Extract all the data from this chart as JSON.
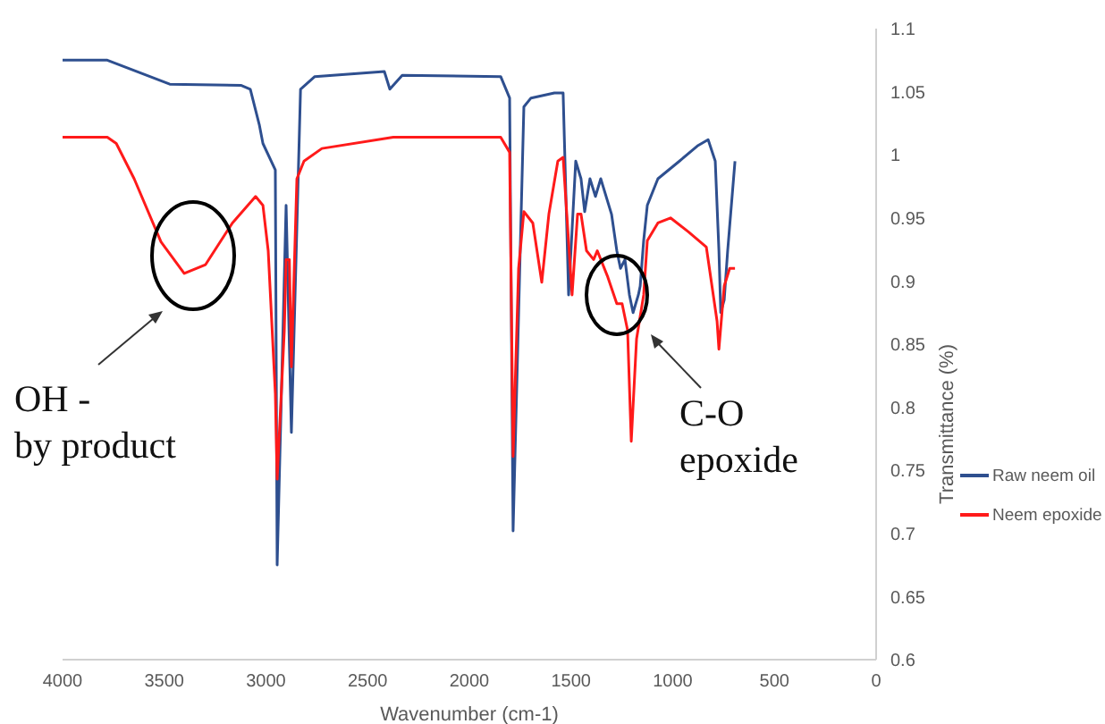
{
  "chart_data": {
    "type": "line",
    "xlabel": "Wavenumber (cm-1)",
    "ylabel": "Transmittance (%)",
    "xlim": [
      4000,
      0
    ],
    "xticks": [
      4000,
      3500,
      3000,
      2500,
      2000,
      1500,
      1000,
      500,
      0
    ],
    "ylim": [
      0.6,
      1.1
    ],
    "yticks": [
      0.6,
      0.65,
      0.7,
      0.75,
      0.8,
      0.85,
      0.9,
      0.95,
      1,
      1.05,
      1.1
    ],
    "grid": false,
    "legend": "right",
    "marker": "none",
    "line_style": "solid",
    "annotations": [
      "OH -\nby product",
      "C-O\nepoxide"
    ],
    "series": [
      {
        "name": "Raw neem oil",
        "color": "#2e4f8f",
        "x": [
          4000,
          3780,
          3473,
          3121,
          3077,
          3033,
          3015,
          2954,
          2945,
          2901,
          2875,
          2830,
          2760,
          2418,
          2391,
          2330,
          1846,
          1802,
          1785,
          1732,
          1697,
          1582,
          1539,
          1512,
          1477,
          1451,
          1433,
          1407,
          1380,
          1354,
          1301,
          1275,
          1257,
          1235,
          1213,
          1195,
          1169,
          1160,
          1143,
          1125,
          1073,
          967,
          879,
          826,
          791,
          773,
          764,
          747,
          730,
          694
        ],
        "values": [
          1.075,
          1.075,
          1.056,
          1.055,
          1.052,
          1.024,
          1.009,
          0.988,
          0.675,
          0.96,
          0.78,
          1.052,
          1.062,
          1.066,
          1.052,
          1.063,
          1.062,
          1.045,
          0.702,
          1.038,
          1.045,
          1.049,
          1.049,
          0.889,
          0.995,
          0.981,
          0.955,
          0.981,
          0.967,
          0.981,
          0.953,
          0.924,
          0.91,
          0.917,
          0.889,
          0.875,
          0.889,
          0.896,
          0.932,
          0.96,
          0.981,
          0.995,
          1.007,
          1.012,
          0.995,
          0.924,
          0.875,
          0.885,
          0.924,
          0.995
        ]
      },
      {
        "name": "Neem epoxide",
        "color": "#ff1a1a",
        "x": [
          4000,
          3780,
          3736,
          3648,
          3516,
          3402,
          3297,
          3165,
          3051,
          3015,
          2989,
          2954,
          2945,
          2910,
          2901,
          2885,
          2875,
          2848,
          2813,
          2725,
          2374,
          1846,
          1802,
          1785,
          1758,
          1732,
          1688,
          1644,
          1609,
          1565,
          1539,
          1521,
          1495,
          1468,
          1451,
          1424,
          1389,
          1371,
          1319,
          1275,
          1249,
          1222,
          1204,
          1178,
          1143,
          1125,
          1073,
          1011,
          923,
          835,
          782,
          773,
          747,
          720,
          694
        ],
        "values": [
          1.014,
          1.014,
          1.009,
          0.981,
          0.931,
          0.906,
          0.913,
          0.946,
          0.967,
          0.96,
          0.924,
          0.811,
          0.743,
          0.86,
          0.917,
          0.917,
          0.832,
          0.981,
          0.995,
          1.005,
          1.014,
          1.014,
          1.002,
          0.761,
          0.91,
          0.955,
          0.946,
          0.899,
          0.953,
          0.995,
          0.998,
          0.953,
          0.889,
          0.953,
          0.953,
          0.924,
          0.917,
          0.924,
          0.903,
          0.882,
          0.882,
          0.861,
          0.773,
          0.854,
          0.889,
          0.932,
          0.946,
          0.95,
          0.939,
          0.927,
          0.868,
          0.846,
          0.896,
          0.91,
          0.91
        ]
      }
    ]
  }
}
